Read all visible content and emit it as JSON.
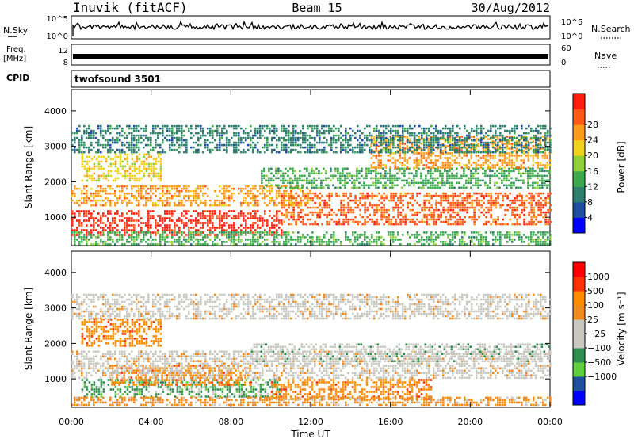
{
  "header": {
    "station": "Inuvik (fitACF)",
    "beam": "Beam 15",
    "date": "30/Aug/2012"
  },
  "nsky_panel": {
    "left_label": "N.Sky",
    "right_label": "N.Search",
    "left_ticks": [
      "10^5",
      "10^0"
    ],
    "right_ticks": [
      "10^5",
      "10^0"
    ]
  },
  "freq_panel": {
    "left_label_1": "Freq.",
    "left_label_2": "[MHz]",
    "right_label": "Nave",
    "left_ticks": [
      "12",
      "8"
    ],
    "right_ticks": [
      "60",
      "0"
    ]
  },
  "cpid_panel": {
    "left_label": "CPID",
    "text": "twofsound 3501"
  },
  "colors": {
    "power": [
      "#0000ff",
      "#1e4fa0",
      "#2f7f6e",
      "#39a94c",
      "#8fcf3a",
      "#f0d21e",
      "#ff9a1a",
      "#ff5a14",
      "#ff1e0a"
    ],
    "velocity": [
      "#ff0000",
      "#ff3300",
      "#ff8c00",
      "#f08a1e",
      "#c8c8c0",
      "#c8c8c0",
      "#2f8f4f",
      "#5fcf3a",
      "#1f4fa0",
      "#0000ff"
    ]
  },
  "chart_data": [
    {
      "type": "heatmap",
      "name": "power",
      "xlabel": "",
      "ylabel": "Slant Range [km]",
      "x_ticks": [
        "00:00",
        "04:00",
        "08:00",
        "12:00",
        "16:00",
        "20:00",
        "00:00"
      ],
      "y_ticks": [
        "1000",
        "2000",
        "3000",
        "4000"
      ],
      "ylim": [
        200,
        4600
      ],
      "xlim_hours": [
        0,
        24
      ],
      "colorbar": {
        "label": "Power [dB]",
        "ticks": [
          "4",
          "8",
          "12",
          "16",
          "20",
          "24",
          "28"
        ]
      },
      "bands": [
        {
          "t0": 0.0,
          "t1": 10.5,
          "r0": 500,
          "r1": 1200,
          "level": 8
        },
        {
          "t0": 10.5,
          "t1": 24.0,
          "r0": 800,
          "r1": 1700,
          "level": 7
        },
        {
          "t0": 0.0,
          "t1": 12.0,
          "r0": 1300,
          "r1": 1900,
          "level": 6
        },
        {
          "t0": 0.5,
          "t1": 4.5,
          "r0": 2000,
          "r1": 2800,
          "level": 5
        },
        {
          "t0": 9.5,
          "t1": 24.0,
          "r0": 1800,
          "r1": 2400,
          "level": 3
        },
        {
          "t0": 15.0,
          "t1": 24.0,
          "r0": 2400,
          "r1": 3300,
          "level": 6
        },
        {
          "t0": 0.0,
          "t1": 24.0,
          "r0": 2800,
          "r1": 3600,
          "level": 2
        },
        {
          "t0": 0.0,
          "t1": 24.0,
          "r0": 250,
          "r1": 600,
          "level": 3
        }
      ]
    },
    {
      "type": "heatmap",
      "name": "velocity",
      "xlabel": "Time UT",
      "ylabel": "Slant Range [km]",
      "x_ticks": [
        "00:00",
        "04:00",
        "08:00",
        "12:00",
        "16:00",
        "20:00",
        "00:00"
      ],
      "y_ticks": [
        "1000",
        "2000",
        "3000",
        "4000"
      ],
      "ylim": [
        200,
        4600
      ],
      "xlim_hours": [
        0,
        24
      ],
      "colorbar": {
        "label": "Velocity [m s⁻¹]",
        "ticks": [
          "1000",
          "500",
          "100",
          "25",
          "−25",
          "−100",
          "−500",
          "−1000"
        ]
      },
      "bands": [
        {
          "t0": 0.5,
          "t1": 10.5,
          "r0": 500,
          "r1": 1000,
          "level": 6
        },
        {
          "t0": 2.0,
          "t1": 9.0,
          "r0": 800,
          "r1": 1400,
          "level": 2
        },
        {
          "t0": 10.0,
          "t1": 18.0,
          "r0": 400,
          "r1": 1000,
          "level": 2
        },
        {
          "t0": 0.0,
          "t1": 24.0,
          "r0": 1000,
          "r1": 1800,
          "level": 4
        },
        {
          "t0": 9.0,
          "t1": 24.0,
          "r0": 1500,
          "r1": 2000,
          "level": 5
        },
        {
          "t0": 0.5,
          "t1": 4.5,
          "r0": 1900,
          "r1": 2700,
          "level": 2
        },
        {
          "t0": 0.0,
          "t1": 24.0,
          "r0": 2700,
          "r1": 3400,
          "level": 4
        },
        {
          "t0": 0.0,
          "t1": 24.0,
          "r0": 250,
          "r1": 500,
          "level": 3
        }
      ]
    }
  ]
}
